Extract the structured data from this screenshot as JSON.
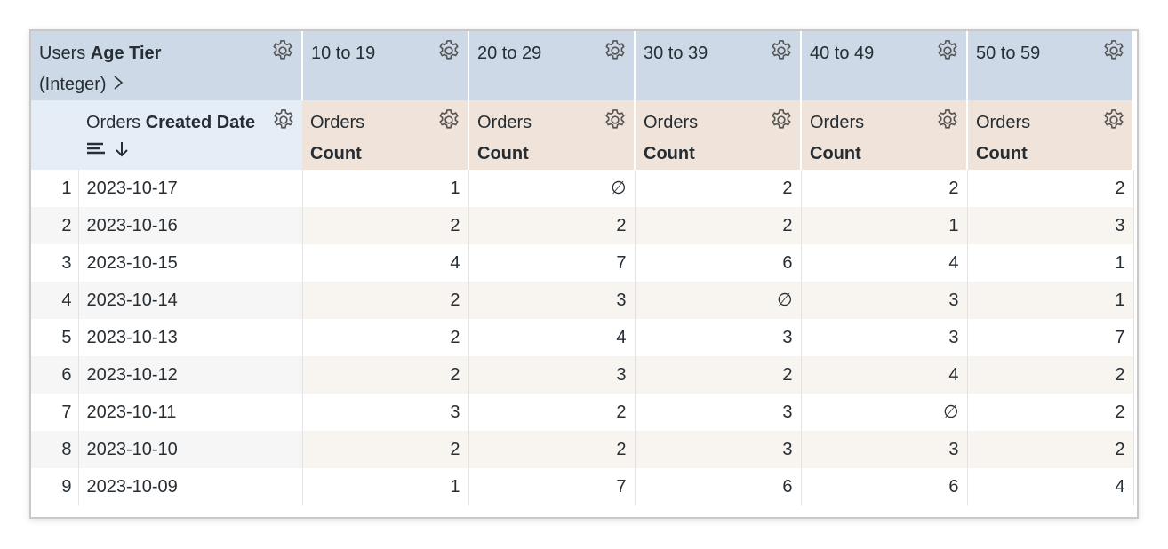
{
  "pivot_header": {
    "prefix": "Users",
    "name": "Age Tier",
    "suffix": "(Integer)"
  },
  "pivot_columns": [
    "10 to 19",
    "20 to 29",
    "30 to 39",
    "40 to 49",
    "50 to 59"
  ],
  "dimension_header": {
    "prefix": "Orders",
    "name": "Created Date"
  },
  "measure_header": {
    "prefix": "Orders",
    "name": "Count"
  },
  "table": {
    "rows": [
      [
        1,
        "2023-10-17",
        1,
        "∅",
        2,
        2,
        2
      ],
      [
        2,
        "2023-10-16",
        2,
        2,
        2,
        1,
        3
      ],
      [
        3,
        "2023-10-15",
        4,
        7,
        6,
        4,
        1
      ],
      [
        4,
        "2023-10-14",
        2,
        3,
        "∅",
        3,
        1
      ],
      [
        5,
        "2023-10-13",
        2,
        4,
        3,
        3,
        7
      ],
      [
        6,
        "2023-10-12",
        2,
        3,
        2,
        4,
        2
      ],
      [
        7,
        "2023-10-11",
        3,
        2,
        3,
        "∅",
        2
      ],
      [
        8,
        "2023-10-10",
        2,
        2,
        3,
        3,
        2
      ],
      [
        9,
        "2023-10-09",
        1,
        7,
        6,
        6,
        4
      ]
    ]
  }
}
